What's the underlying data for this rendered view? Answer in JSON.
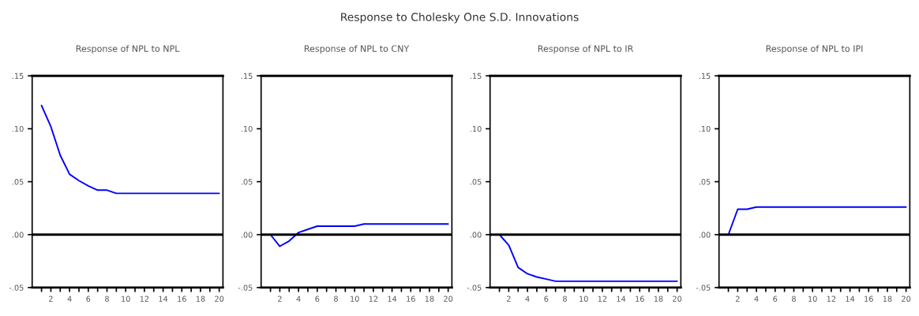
{
  "chart_data": [
    {
      "type": "line",
      "title": "Response of NPL to NPL",
      "annotations": [
        "Response to Cholesky One S.D. Innovations"
      ],
      "x": [
        1,
        2,
        3,
        4,
        5,
        6,
        7,
        8,
        9,
        10,
        11,
        12,
        13,
        14,
        15,
        16,
        17,
        18,
        19,
        20
      ],
      "series": [
        {
          "color": "#0000ff",
          "values": [
            0.122,
            0.102,
            0.075,
            0.057,
            0.051,
            0.046,
            0.042,
            0.042,
            0.039,
            0.039,
            0.039,
            0.039,
            0.039,
            0.039,
            0.039,
            0.039,
            0.039,
            0.039,
            0.039,
            0.039
          ]
        }
      ],
      "xlim": [
        0,
        20.4
      ],
      "xticks": [
        {
          "value": 1,
          "label": null
        },
        2,
        {
          "value": 3,
          "label": null
        },
        4,
        {
          "value": 5,
          "label": null
        },
        6,
        {
          "value": 7,
          "label": null
        },
        8,
        {
          "value": 9,
          "label": null
        },
        10,
        {
          "value": 11,
          "label": null
        },
        12,
        {
          "value": 13,
          "label": null
        },
        14,
        {
          "value": 15,
          "label": null
        },
        16,
        {
          "value": 17,
          "label": null
        },
        18,
        {
          "value": 19,
          "label": null
        },
        20
      ],
      "ylim": [
        -0.05,
        0.15
      ],
      "yticks": [
        {
          "value": -0.05,
          "label": "-.05"
        },
        {
          "value": 0,
          "label": ".00"
        },
        {
          "value": 0.05,
          "label": ".05"
        },
        {
          "value": 0.1,
          "label": ".10"
        },
        {
          "value": 0.15,
          "label": ".15"
        }
      ],
      "ref_lines": [
        {
          "axis": "y",
          "value": 0,
          "color": "#000000"
        }
      ],
      "grid": false,
      "legend": false
    },
    {
      "type": "line",
      "title": "Response of NPL to CNY",
      "x": [
        1,
        2,
        3,
        4,
        5,
        6,
        7,
        8,
        9,
        10,
        11,
        12,
        13,
        14,
        15,
        16,
        17,
        18,
        19,
        20
      ],
      "series": [
        {
          "color": "#0000ff",
          "values": [
            0,
            -0.011,
            -0.006,
            0.002,
            0.005,
            0.008,
            0.008,
            0.008,
            0.008,
            0.008,
            0.01,
            0.01,
            0.01,
            0.01,
            0.01,
            0.01,
            0.01,
            0.01,
            0.01,
            0.01
          ]
        }
      ],
      "xlim": [
        0,
        20.4
      ],
      "xticks": [
        {
          "value": 1,
          "label": null
        },
        2,
        {
          "value": 3,
          "label": null
        },
        4,
        {
          "value": 5,
          "label": null
        },
        6,
        {
          "value": 7,
          "label": null
        },
        8,
        {
          "value": 9,
          "label": null
        },
        10,
        {
          "value": 11,
          "label": null
        },
        12,
        {
          "value": 13,
          "label": null
        },
        14,
        {
          "value": 15,
          "label": null
        },
        16,
        {
          "value": 17,
          "label": null
        },
        18,
        {
          "value": 19,
          "label": null
        },
        20
      ],
      "ylim": [
        -0.05,
        0.15
      ],
      "yticks": [
        {
          "value": -0.05,
          "label": "-.05"
        },
        {
          "value": 0,
          "label": ".00"
        },
        {
          "value": 0.05,
          "label": ".05"
        },
        {
          "value": 0.1,
          "label": ".10"
        },
        {
          "value": 0.15,
          "label": ".15"
        }
      ],
      "ref_lines": [
        {
          "axis": "y",
          "value": 0,
          "color": "#000000"
        }
      ],
      "grid": false,
      "legend": false
    },
    {
      "type": "line",
      "title": "Response of NPL to IR",
      "x": [
        1,
        2,
        3,
        4,
        5,
        6,
        7,
        8,
        9,
        10,
        11,
        12,
        13,
        14,
        15,
        16,
        17,
        18,
        19,
        20
      ],
      "series": [
        {
          "color": "#0000ff",
          "values": [
            0,
            -0.01,
            -0.031,
            -0.037,
            -0.04,
            -0.042,
            -0.044,
            -0.044,
            -0.044,
            -0.044,
            -0.044,
            -0.044,
            -0.044,
            -0.044,
            -0.044,
            -0.044,
            -0.044,
            -0.044,
            -0.044,
            -0.044
          ]
        }
      ],
      "xlim": [
        0,
        20.4
      ],
      "xticks": [
        {
          "value": 1,
          "label": null
        },
        2,
        {
          "value": 3,
          "label": null
        },
        4,
        {
          "value": 5,
          "label": null
        },
        6,
        {
          "value": 7,
          "label": null
        },
        8,
        {
          "value": 9,
          "label": null
        },
        10,
        {
          "value": 11,
          "label": null
        },
        12,
        {
          "value": 13,
          "label": null
        },
        14,
        {
          "value": 15,
          "label": null
        },
        16,
        {
          "value": 17,
          "label": null
        },
        18,
        {
          "value": 19,
          "label": null
        },
        20
      ],
      "ylim": [
        -0.05,
        0.15
      ],
      "yticks": [
        {
          "value": -0.05,
          "label": "-.05"
        },
        {
          "value": 0,
          "label": ".00"
        },
        {
          "value": 0.05,
          "label": ".05"
        },
        {
          "value": 0.1,
          "label": ".10"
        },
        {
          "value": 0.15,
          "label": ".15"
        }
      ],
      "ref_lines": [
        {
          "axis": "y",
          "value": 0,
          "color": "#000000"
        }
      ],
      "grid": false,
      "legend": false
    },
    {
      "type": "line",
      "title": "Response of NPL to IPI",
      "x": [
        1,
        2,
        3,
        4,
        5,
        6,
        7,
        8,
        9,
        10,
        11,
        12,
        13,
        14,
        15,
        16,
        17,
        18,
        19,
        20
      ],
      "series": [
        {
          "color": "#0000ff",
          "values": [
            0,
            0.024,
            0.024,
            0.026,
            0.026,
            0.026,
            0.026,
            0.026,
            0.026,
            0.026,
            0.026,
            0.026,
            0.026,
            0.026,
            0.026,
            0.026,
            0.026,
            0.026,
            0.026,
            0.026
          ]
        }
      ],
      "xlim": [
        0,
        20.4
      ],
      "xticks": [
        {
          "value": 1,
          "label": null
        },
        2,
        {
          "value": 3,
          "label": null
        },
        4,
        {
          "value": 5,
          "label": null
        },
        6,
        {
          "value": 7,
          "label": null
        },
        8,
        {
          "value": 9,
          "label": null
        },
        10,
        {
          "value": 11,
          "label": null
        },
        12,
        {
          "value": 13,
          "label": null
        },
        14,
        {
          "value": 15,
          "label": null
        },
        16,
        {
          "value": 17,
          "label": null
        },
        18,
        {
          "value": 19,
          "label": null
        },
        20
      ],
      "ylim": [
        -0.05,
        0.15
      ],
      "yticks": [
        {
          "value": -0.05,
          "label": "-.05"
        },
        {
          "value": 0,
          "label": ".00"
        },
        {
          "value": 0.05,
          "label": ".05"
        },
        {
          "value": 0.1,
          "label": ".10"
        },
        {
          "value": 0.15,
          "label": ".15"
        }
      ],
      "ref_lines": [
        {
          "axis": "y",
          "value": 0,
          "color": "#000000"
        }
      ],
      "grid": false,
      "legend": false
    }
  ]
}
